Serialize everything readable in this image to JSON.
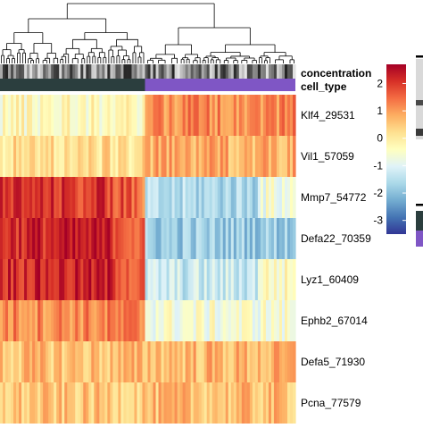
{
  "chart_data": {
    "type": "heatmap",
    "title": "",
    "xlabel": "",
    "ylabel": "",
    "dendrogram": "columns",
    "annotation_tracks": [
      {
        "name": "concentration",
        "style": "grayscale"
      },
      {
        "name": "cell_type",
        "groups": [
          {
            "group": 1,
            "color": "#2b3e3e",
            "columns": 54
          },
          {
            "group": 2,
            "color": "#7f56c5",
            "columns": 56
          }
        ]
      }
    ],
    "rows": [
      "Klf4_29531",
      "Vil1_57059",
      "Mmp7_54772",
      "Defa22_70359",
      "Lyz1_60409",
      "Ephb2_67014",
      "Defa5_71930",
      "Pcna_77579"
    ],
    "column_count": 110,
    "group_split_column": 54,
    "approx_row_means": {
      "Klf4_29531": [
        -0.3,
        1.2
      ],
      "Vil1_57059": [
        0.2,
        0.8
      ],
      "Mmp7_54772": [
        2.0,
        -1.6
      ],
      "Defa22_70359": [
        2.2,
        -1.8
      ],
      "Lyz1_60409": [
        2.2,
        -1.3
      ],
      "Ephb2_67014": [
        1.2,
        -0.6
      ],
      "Defa5_71930": [
        0.6,
        0.7
      ],
      "Pcna_77579": [
        0.5,
        0.6
      ]
    },
    "color_scale": {
      "min": -3.5,
      "max": 2.7,
      "ticks": [
        2,
        1,
        0,
        -1,
        -2,
        -3
      ],
      "colors": [
        "#313695",
        "#4575b4",
        "#74add1",
        "#abd9e9",
        "#e0f3f8",
        "#ffffbf",
        "#fee090",
        "#fdae61",
        "#f46d43",
        "#d73027",
        "#a50026"
      ]
    }
  }
}
